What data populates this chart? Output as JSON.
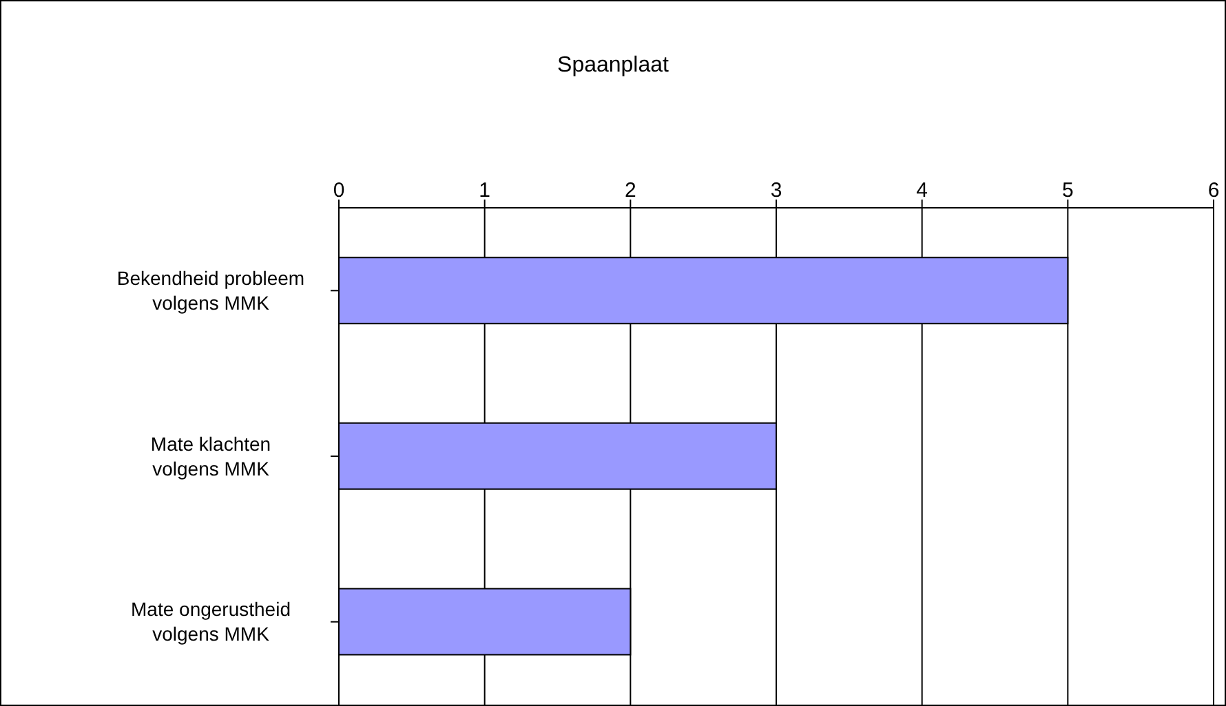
{
  "chart_data": {
    "type": "bar",
    "orientation": "horizontal",
    "title": "Spaanplaat",
    "categories": [
      "Bekendheid probleem volgens MMK",
      "Mate klachten volgens MMK",
      "Mate ongerustheid volgens MMK"
    ],
    "values": [
      5,
      3,
      2
    ],
    "color": "#9999ff",
    "xlim": [
      0,
      6
    ],
    "xticks": [
      0,
      1,
      2,
      3,
      4,
      5,
      6
    ],
    "grid": "x",
    "legend": false
  }
}
